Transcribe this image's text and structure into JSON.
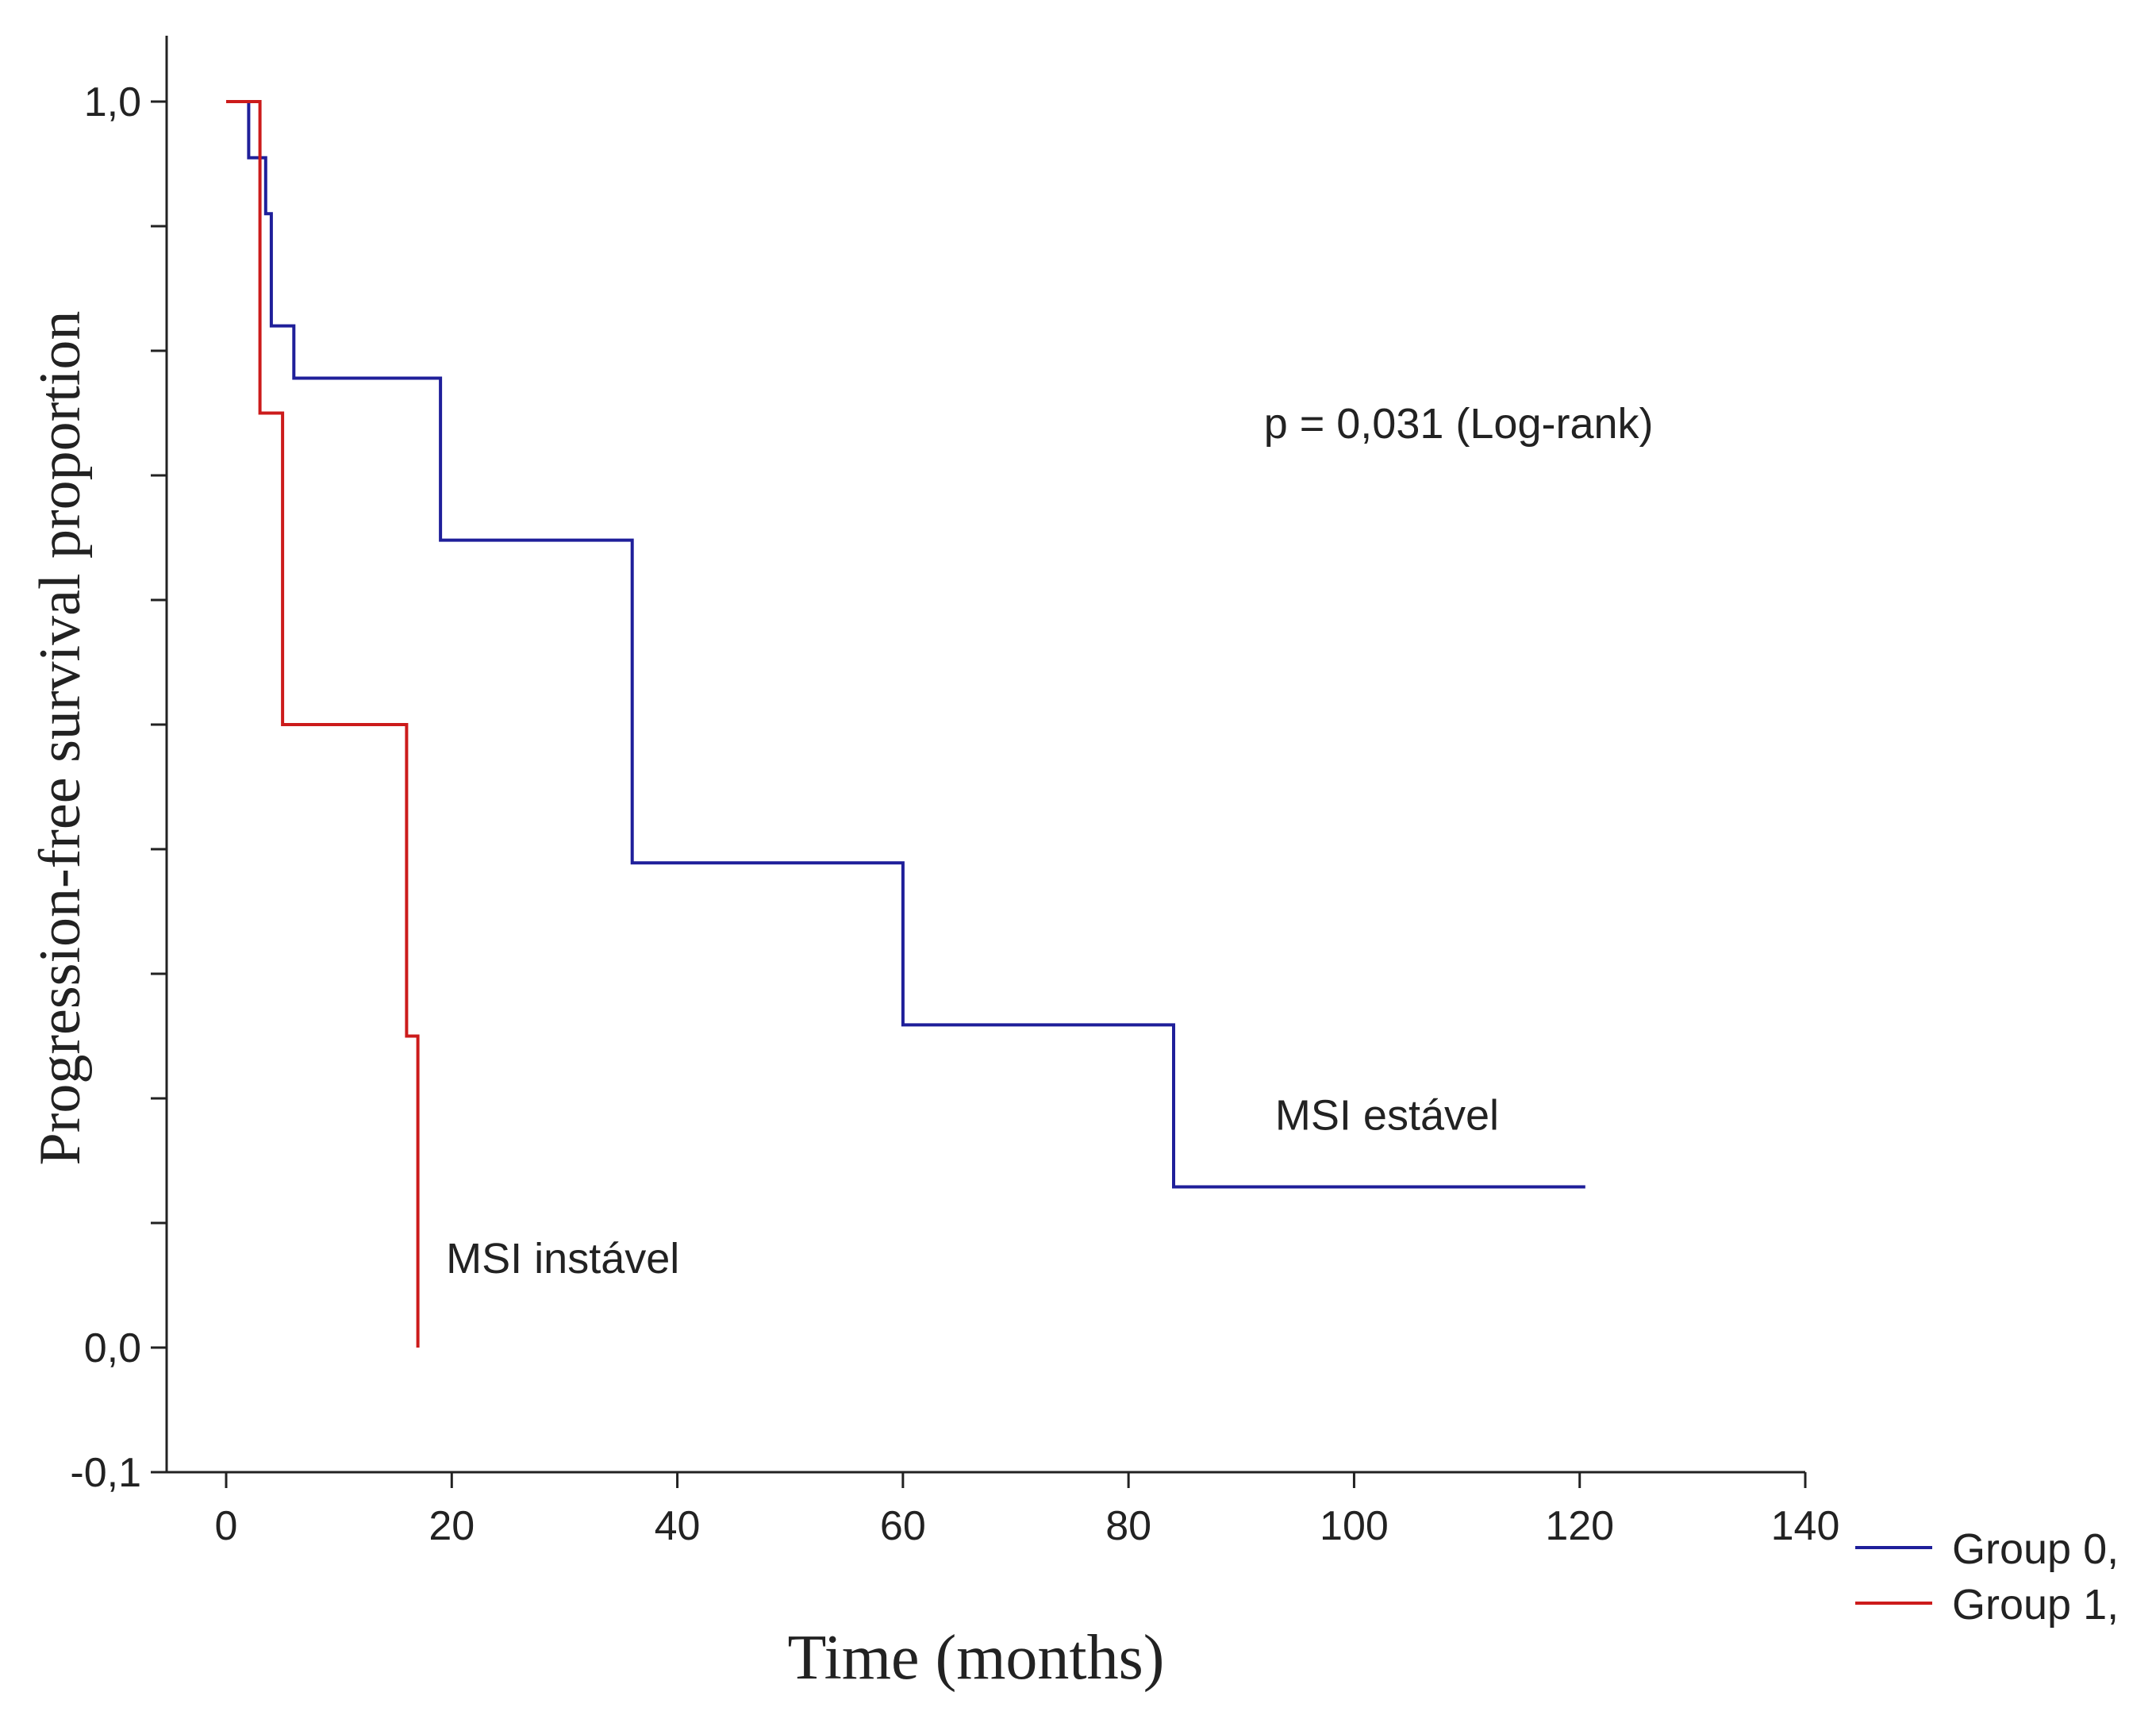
{
  "chart_data": {
    "type": "line",
    "subtype": "kaplan-meier step",
    "xlabel": "Time (months)",
    "ylabel": "Progression-free survival proportion",
    "xlim": [
      -5,
      140
    ],
    "ylim": [
      -0.1,
      1.05
    ],
    "x_ticks": [
      0,
      20,
      40,
      60,
      80,
      100,
      120,
      140
    ],
    "x_tick_labels": [
      "0",
      "20",
      "40",
      "60",
      "80",
      "100",
      "120",
      "140"
    ],
    "y_ticks": [
      -0.1,
      0.0,
      0.1,
      0.2,
      0.3,
      0.4,
      0.5,
      0.6,
      0.7,
      0.8,
      0.9,
      1.0
    ],
    "y_tick_labels": [
      {
        "value": -0.1,
        "label": "-0,1"
      },
      {
        "value": 0.0,
        "label": "0,0"
      },
      {
        "value": 1.0,
        "label": "1,0"
      }
    ],
    "annotations": [
      {
        "text": "p = 0,031 (Log-rank)",
        "x": 92,
        "y": 0.73
      },
      {
        "text": "MSI estável",
        "x": 93,
        "y": 0.175
      },
      {
        "text": "MSI instável",
        "x": 19.5,
        "y": 0.06
      }
    ],
    "legend_position": "bottom-right",
    "series": [
      {
        "name": "Group 0,",
        "color": "#1f1f9a",
        "x": [
          0,
          2,
          2,
          3.5,
          3.5,
          4,
          4,
          6,
          6,
          19,
          19,
          36,
          36,
          60,
          60,
          84,
          84,
          120.5
        ],
        "y": [
          1.0,
          1.0,
          0.955,
          0.955,
          0.91,
          0.91,
          0.82,
          0.82,
          0.778,
          0.778,
          0.648,
          0.648,
          0.389,
          0.389,
          0.259,
          0.259,
          0.129,
          0.129
        ]
      },
      {
        "name": "Group 1,",
        "color": "#cc1b1b",
        "x": [
          0,
          3,
          3,
          5,
          5,
          16,
          16,
          17,
          17
        ],
        "y": [
          1.0,
          1.0,
          0.75,
          0.75,
          0.5,
          0.5,
          0.25,
          0.25,
          0.0
        ]
      }
    ]
  }
}
